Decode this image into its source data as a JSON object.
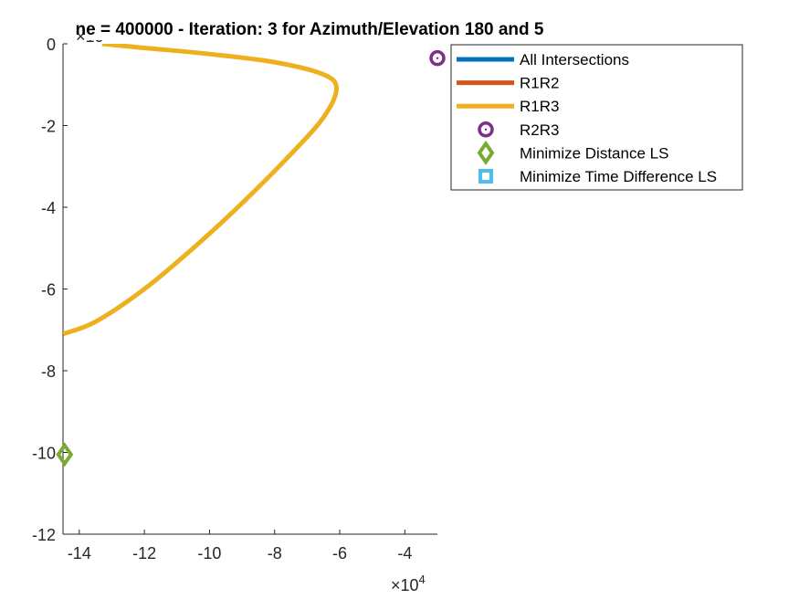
{
  "chart_data": {
    "type": "line",
    "title": "ne = 400000 - Iteration: 3 for Azimuth/Elevation 180 and 5",
    "x_exponent_label": "×10",
    "x_exponent_power": "4",
    "y_exponent_label": "×10",
    "y_exponent_power": "6",
    "xlim": [
      -14.5,
      -3
    ],
    "ylim": [
      -12,
      0
    ],
    "x_ticks": [
      -14,
      -12,
      -10,
      -8,
      -6,
      -4
    ],
    "y_ticks": [
      0,
      -2,
      -4,
      -6,
      -8,
      -10,
      -12
    ],
    "grid": false,
    "legend_position": "top-right (outside axes)",
    "series": [
      {
        "name": "All Intersections",
        "style": "line",
        "color": "#0072BD",
        "points": []
      },
      {
        "name": "R1R2",
        "style": "line",
        "color": "#D95319",
        "points": []
      },
      {
        "name": "R1R3",
        "style": "line",
        "color": "#EDB120",
        "points": [
          [
            -13.3,
            0.0
          ],
          [
            -12.0,
            -0.1
          ],
          [
            -10.0,
            -0.25
          ],
          [
            -8.0,
            -0.45
          ],
          [
            -6.5,
            -0.75
          ],
          [
            -6.1,
            -1.1
          ],
          [
            -6.5,
            -1.8
          ],
          [
            -7.5,
            -2.7
          ],
          [
            -9.0,
            -3.9
          ],
          [
            -10.5,
            -5.0
          ],
          [
            -12.0,
            -6.0
          ],
          [
            -13.5,
            -6.8
          ],
          [
            -14.5,
            -7.1
          ]
        ]
      },
      {
        "name": "R2R3",
        "style": "marker-circle",
        "color": "#7E2F8E",
        "points": [
          [
            -3.0,
            -0.35
          ]
        ]
      },
      {
        "name": "Minimize Distance LS",
        "style": "marker-diamond",
        "color": "#77AC30",
        "points": [
          [
            -14.45,
            -10.05
          ]
        ]
      },
      {
        "name": "Minimize Time Difference LS",
        "style": "marker-square",
        "color": "#4DBEEE",
        "points": []
      }
    ]
  }
}
